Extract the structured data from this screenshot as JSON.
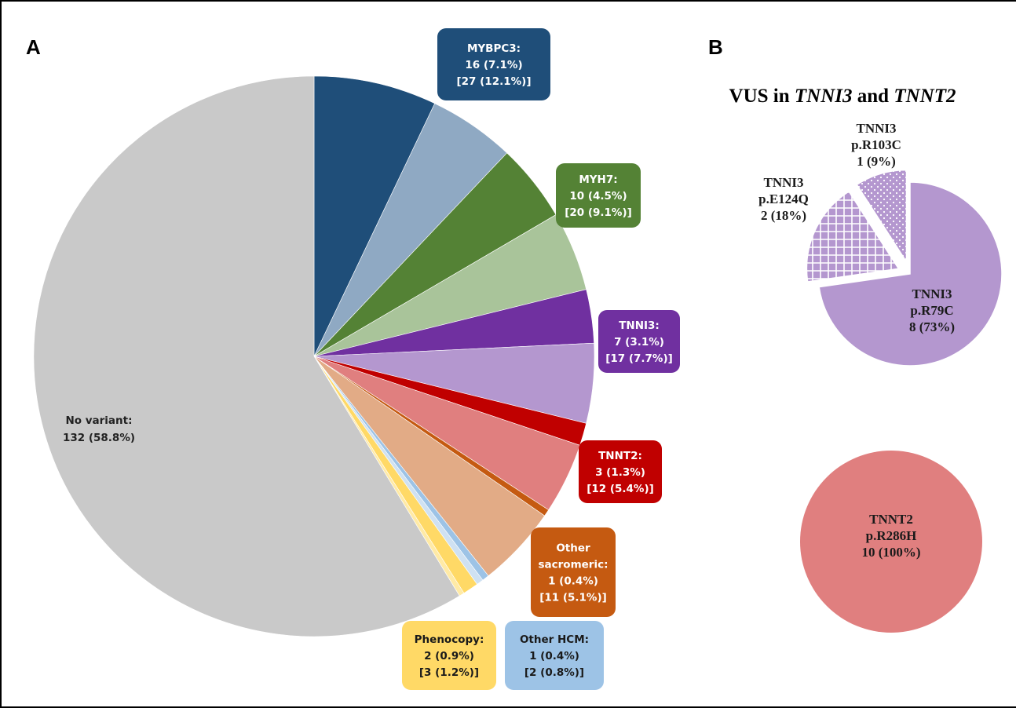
{
  "chart_data": [
    {
      "type": "pie",
      "panel": "A",
      "slices": [
        {
          "name": "MYBPC3 (pathogenic)",
          "value": 16,
          "percent": 7.1,
          "color": "#1f4e79"
        },
        {
          "name": "MYBPC3 (VUS)",
          "value": 11,
          "percent": 5.0,
          "color": "#8fa9c3"
        },
        {
          "name": "MYH7 (pathogenic)",
          "value": 10,
          "percent": 4.5,
          "color": "#548235"
        },
        {
          "name": "MYH7 (VUS)",
          "value": 10,
          "percent": 4.6,
          "color": "#a9c49a"
        },
        {
          "name": "TNNI3 (pathogenic)",
          "value": 7,
          "percent": 3.1,
          "color": "#7030a0"
        },
        {
          "name": "TNNI3 (VUS)",
          "value": 10,
          "percent": 4.6,
          "color": "#b497cf"
        },
        {
          "name": "TNNT2 (pathogenic)",
          "value": 3,
          "percent": 1.3,
          "color": "#c00000"
        },
        {
          "name": "TNNT2 (VUS)",
          "value": 9,
          "percent": 4.1,
          "color": "#e07f7f"
        },
        {
          "name": "Other sacromeric (pathogenic)",
          "value": 1,
          "percent": 0.4,
          "color": "#c55a11"
        },
        {
          "name": "Other sacromeric (VUS)",
          "value": 10,
          "percent": 4.7,
          "color": "#e2ab86"
        },
        {
          "name": "Other HCM (pathogenic)",
          "value": 1,
          "percent": 0.4,
          "color": "#9dc3e6"
        },
        {
          "name": "Other HCM (VUS)",
          "value": 1,
          "percent": 0.4,
          "color": "#cfe1f2"
        },
        {
          "name": "Phenocopy (pathogenic)",
          "value": 2,
          "percent": 0.9,
          "color": "#ffd966"
        },
        {
          "name": "Phenocopy (VUS)",
          "value": 1,
          "percent": 0.3,
          "color": "#ffeaa6"
        },
        {
          "name": "No variant",
          "value": 132,
          "percent": 58.8,
          "color": "#c9c9c9"
        }
      ],
      "labels": {
        "mybpc3": [
          "MYBPC3:",
          "16 (7.1%)",
          "[27 (12.1%)]"
        ],
        "myh7": [
          "MYH7:",
          "10 (4.5%)",
          "[20 (9.1%)]"
        ],
        "tnni3": [
          "TNNI3:",
          "7 (3.1%)",
          "[17 (7.7%)]"
        ],
        "tnnt2": [
          "TNNT2:",
          "3 (1.3%)",
          "[12 (5.4%)]"
        ],
        "other_sarc": [
          "Other",
          "sacromeric:",
          "1 (0.4%)",
          "[11 (5.1%)]"
        ],
        "other_hcm": [
          "Other HCM:",
          "1 (0.4%)",
          "[2 (0.8%)]"
        ],
        "phenocopy": [
          "Phenocopy:",
          "2 (0.9%)",
          "[3 (1.2%)]"
        ],
        "no_variant": [
          "No variant:",
          "132 (58.8%)"
        ]
      }
    },
    {
      "type": "pie",
      "panel": "B",
      "title": "VUS in TNNI3 and TNNT2",
      "title_parts": {
        "prefix": "VUS in ",
        "gene1": "TNNI3",
        "mid": " and ",
        "gene2": "TNNT2"
      },
      "slices": [
        {
          "gene": "TNNI3",
          "variant": "p.R79C",
          "value": 8,
          "percent": 73,
          "text": "8 (73%)",
          "color": "#b497cf",
          "pattern": "solid"
        },
        {
          "gene": "TNNI3",
          "variant": "p.E124Q",
          "value": 2,
          "percent": 18,
          "text": "2 (18%)",
          "color": "#b497cf",
          "pattern": "grid",
          "exploded": true
        },
        {
          "gene": "TNNI3",
          "variant": "p.R103C",
          "value": 1,
          "percent": 9,
          "text": "1 (9%)",
          "color": "#b497cf",
          "pattern": "dots",
          "exploded": true
        }
      ]
    },
    {
      "type": "pie",
      "panel": "B",
      "slices": [
        {
          "gene": "TNNT2",
          "variant": "p.R286H",
          "value": 10,
          "percent": 100,
          "text": "10 (100%)",
          "color": "#e07f7f"
        }
      ]
    }
  ],
  "panels": {
    "a": "A",
    "b": "B"
  },
  "colors": {
    "white": "#ffffff"
  }
}
